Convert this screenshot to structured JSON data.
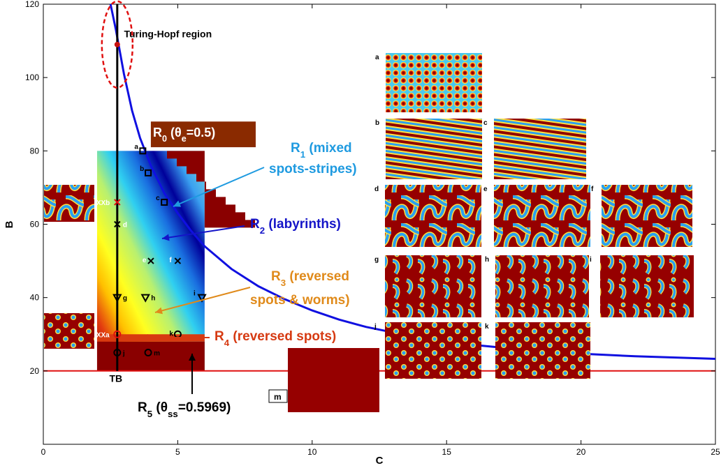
{
  "chart_data": {
    "type": "line",
    "xlabel": "C",
    "ylabel": "B",
    "xlim": [
      0,
      25
    ],
    "ylim": [
      0,
      120
    ],
    "xticks": [
      0,
      5,
      10,
      15,
      20,
      25
    ],
    "yticks": [
      20,
      40,
      60,
      80,
      100,
      120
    ],
    "grid": false,
    "series": [
      {
        "color": "#1010e0",
        "x": [
          2.5,
          2.7,
          3.0,
          3.3,
          3.6,
          4.0,
          4.5,
          5.0,
          5.5,
          6.0,
          7.0,
          8.0,
          9.0,
          10.0,
          11.0,
          12.0,
          14.0,
          16.0,
          18.0,
          20.0,
          22.0,
          25.0
        ],
        "y": [
          120,
          113,
          101,
          91,
          83.5,
          76,
          68.5,
          63,
          58.2,
          54,
          47.8,
          43.1,
          39.5,
          36.5,
          34,
          32,
          29,
          27.1,
          25.7,
          24.7,
          24,
          23.3
        ]
      },
      {
        "color": "#e01010",
        "x": [
          0,
          25
        ],
        "y": [
          20,
          20
        ]
      }
    ],
    "lines": [
      {
        "label": "TB",
        "x": 2.75,
        "color": "#000000"
      }
    ],
    "region_labels": [
      {
        "id": "r0",
        "text": "R",
        "sub": "0",
        "rest": " (θ",
        "sub2": "e",
        "rest2": "=0.5)",
        "color": "#ffffff"
      },
      {
        "id": "r1a",
        "text": "R",
        "sub": "1",
        "rest": " (mixed",
        "color": "#1e9ae0"
      },
      {
        "id": "r1b",
        "text": "spots-stripes)",
        "color": "#1e9ae0"
      },
      {
        "id": "r2",
        "text": "R",
        "sub": "2",
        "rest": " (labyrinths)",
        "color": "#1414c8"
      },
      {
        "id": "r3a",
        "text": "R",
        "sub": "3",
        "rest": " (reversed",
        "color": "#e08a1a"
      },
      {
        "id": "r3b",
        "text": "spots & worms)",
        "color": "#e08a1a"
      },
      {
        "id": "r4",
        "text": "R",
        "sub": "4",
        "rest": " (reversed spots)",
        "color": "#d63a12"
      },
      {
        "id": "r5",
        "text": "R",
        "sub": "5",
        "rest": " (θ",
        "sub2": "ss",
        "rest2": "=0.5969)",
        "color": "#000000"
      }
    ],
    "annotations": {
      "turing_hopf": "Turing-Hopf region",
      "tb": "TB"
    },
    "markers": [
      {
        "label": "a",
        "shape": "square",
        "x": 3.7,
        "y": 80
      },
      {
        "label": "b",
        "shape": "square",
        "x": 3.9,
        "y": 74
      },
      {
        "label": "c",
        "shape": "square",
        "x": 4.5,
        "y": 66
      },
      {
        "label": "d",
        "shape": "cross",
        "x": 2.75,
        "y": 60
      },
      {
        "label": "e",
        "shape": "cross",
        "x": 4.0,
        "y": 50
      },
      {
        "label": "f",
        "shape": "cross",
        "x": 5.0,
        "y": 50
      },
      {
        "label": "g",
        "shape": "triangle",
        "x": 2.75,
        "y": 40
      },
      {
        "label": "h",
        "shape": "triangle",
        "x": 3.8,
        "y": 40
      },
      {
        "label": "i",
        "shape": "triangle",
        "x": 5.9,
        "y": 40
      },
      {
        "label": "j",
        "shape": "circle",
        "x": 2.75,
        "y": 25
      },
      {
        "label": "k",
        "shape": "circle",
        "x": 5.0,
        "y": 30
      },
      {
        "label": "m",
        "shape": "circle",
        "x": 3.9,
        "y": 25
      },
      {
        "label": "XXa",
        "shape": "circle",
        "x": 2.75,
        "y": 30
      },
      {
        "label": "XXb",
        "shape": "cross",
        "x": 2.75,
        "y": 66
      }
    ],
    "insets": [
      {
        "label": "a",
        "kind": "spots"
      },
      {
        "label": "b",
        "kind": "stripes"
      },
      {
        "label": "c",
        "kind": "stripes"
      },
      {
        "label": "d",
        "kind": "labyrinth"
      },
      {
        "label": "e",
        "kind": "labyrinth"
      },
      {
        "label": "f",
        "kind": "labyrinth"
      },
      {
        "label": "g",
        "kind": "worms"
      },
      {
        "label": "h",
        "kind": "worms"
      },
      {
        "label": "i",
        "kind": "worms"
      },
      {
        "label": "j",
        "kind": "reversed-spots"
      },
      {
        "label": "k",
        "kind": "reversed-spots"
      },
      {
        "label": "m",
        "kind": "uniform"
      }
    ]
  }
}
